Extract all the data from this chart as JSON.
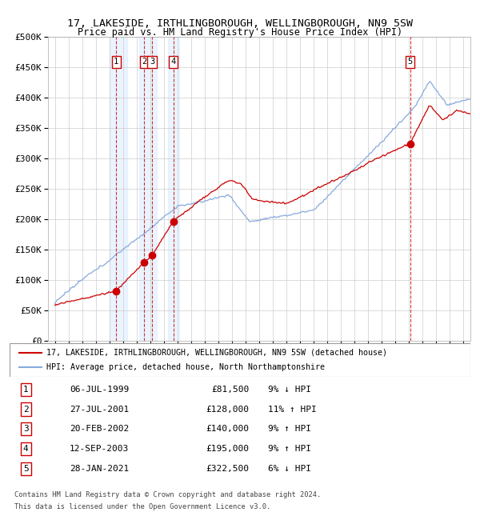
{
  "title": "17, LAKESIDE, IRTHLINGBOROUGH, WELLINGBOROUGH, NN9 5SW",
  "subtitle": "Price paid vs. HM Land Registry's House Price Index (HPI)",
  "ylim": [
    0,
    500000
  ],
  "yticks": [
    0,
    50000,
    100000,
    150000,
    200000,
    250000,
    300000,
    350000,
    400000,
    450000,
    500000
  ],
  "ytick_labels": [
    "£0",
    "£50K",
    "£100K",
    "£150K",
    "£200K",
    "£250K",
    "£300K",
    "£350K",
    "£400K",
    "£450K",
    "£500K"
  ],
  "xlim_start": 1994.5,
  "xlim_end": 2025.5,
  "background_color": "#ffffff",
  "grid_color": "#cccccc",
  "sale_line_color": "#cc0000",
  "hpi_line_color": "#88aadd",
  "shade_color": "#ddeeff",
  "transactions": [
    {
      "num": 1,
      "date_str": "06-JUL-1999",
      "year": 1999.51,
      "price": 81500,
      "pct": "9%",
      "dir": "↓"
    },
    {
      "num": 2,
      "date_str": "27-JUL-2001",
      "year": 2001.56,
      "price": 128000,
      "pct": "11%",
      "dir": "↑"
    },
    {
      "num": 3,
      "date_str": "20-FEB-2002",
      "year": 2002.13,
      "price": 140000,
      "pct": "9%",
      "dir": "↑"
    },
    {
      "num": 4,
      "date_str": "12-SEP-2003",
      "year": 2003.7,
      "price": 195000,
      "pct": "9%",
      "dir": "↑"
    },
    {
      "num": 5,
      "date_str": "28-JAN-2021",
      "year": 2021.07,
      "price": 322500,
      "pct": "6%",
      "dir": "↓"
    }
  ],
  "legend_line1": "17, LAKESIDE, IRTHLINGBOROUGH, WELLINGBOROUGH, NN9 5SW (detached house)",
  "legend_line2": "HPI: Average price, detached house, North Northamptonshire",
  "footer1": "Contains HM Land Registry data © Crown copyright and database right 2024.",
  "footer2": "This data is licensed under the Open Government Licence v3.0.",
  "hpi_seed": 12345,
  "prop_seed": 99
}
